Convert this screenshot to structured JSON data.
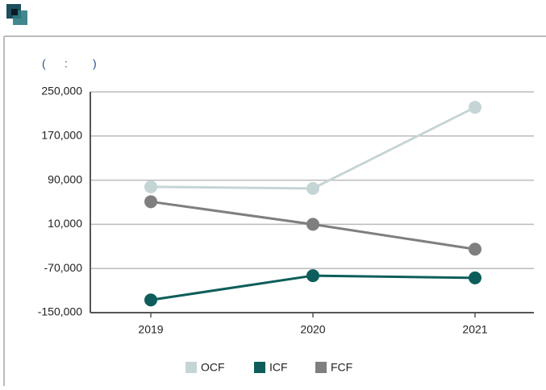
{
  "chart_data": {
    "type": "line",
    "subtitle": "(      :        )",
    "categories": [
      "2019",
      "2020",
      "2021"
    ],
    "series": [
      {
        "name": "OCF",
        "color": "#c5d5d6",
        "values": [
          78000,
          75000,
          222000
        ]
      },
      {
        "name": "ICF",
        "color": "#0d5e5a",
        "values": [
          -127000,
          -83000,
          -87000
        ]
      },
      {
        "name": "FCF",
        "color": "#7f7f7f",
        "values": [
          51000,
          10000,
          -35000
        ]
      }
    ],
    "ylim": [
      -150000,
      250000
    ],
    "yticks": [
      {
        "value": -150000,
        "label": "-150,000"
      },
      {
        "value": -70000,
        "label": "-70,000"
      },
      {
        "value": 10000,
        "label": "10,000"
      },
      {
        "value": 90000,
        "label": "90,000"
      },
      {
        "value": 170000,
        "label": "170,000"
      },
      {
        "value": 250000,
        "label": "250,000"
      }
    ],
    "grid": true,
    "legend": "bottom"
  }
}
